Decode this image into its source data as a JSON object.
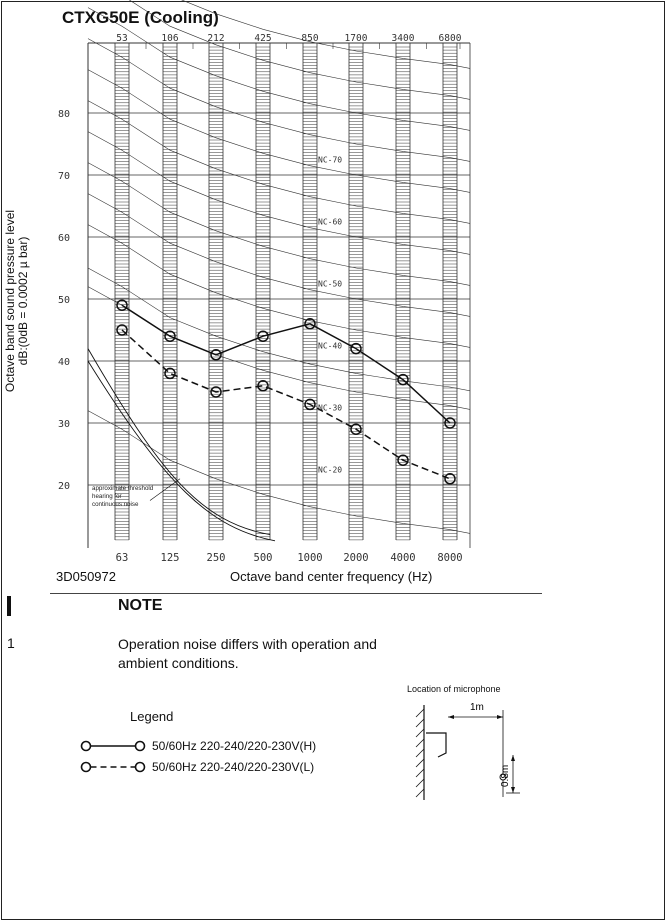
{
  "page": {
    "title": "CTXG50E (Cooling)",
    "drawing_code": "3D050972",
    "note_heading": "NOTE",
    "note_number": "1",
    "note_text": "Operation noise differs with operation and ambient conditions.",
    "mic_location_label": "Location of microphone",
    "mic_distance_label": "1m",
    "mic_height_label": "0.8m",
    "legend_title": "Legend",
    "legend": [
      {
        "label": "50/60Hz 220-240/220-230V(H)",
        "style": "solid"
      },
      {
        "label": "50/60Hz 220-240/220-230V(L)",
        "style": "dashed"
      }
    ]
  },
  "chart_data": {
    "type": "line",
    "title": "CTXG50E (Cooling)",
    "xlabel": "Octave band center frequency (Hz)",
    "ylabel": "Octave band sound pressure level dB:(0dB = 0.0002 µ bar)",
    "ylabel_lines": [
      "Octave band sound pressure level",
      "dB:(0dB = 0.0002 µ bar)"
    ],
    "x_bottom_ticks": [
      "63",
      "125",
      "250",
      "500",
      "1000",
      "2000",
      "4000",
      "8000"
    ],
    "x_top_ticks": [
      "53",
      "106",
      "212",
      "425",
      "850",
      "1700",
      "3400",
      "6800"
    ],
    "y_ticks": [
      20,
      30,
      40,
      50,
      60,
      70,
      80
    ],
    "ylim": [
      15,
      87
    ],
    "grid": true,
    "nc_curves": [
      "NC-20",
      "NC-30",
      "NC-40",
      "NC-50",
      "NC-60",
      "NC-70"
    ],
    "threshold_annotation": "approximate threshold hearing for continuous noise",
    "series": [
      {
        "name": "50/60Hz 220-240/220-230V(H)",
        "style": "solid",
        "values": [
          49,
          44,
          41,
          44,
          46,
          42,
          37,
          30
        ]
      },
      {
        "name": "50/60Hz 220-240/220-230V(L)",
        "style": "dashed",
        "values": [
          45,
          38,
          35,
          36,
          33,
          29,
          24,
          21
        ]
      }
    ],
    "colors": {
      "line": "#111111",
      "grid": "#333333"
    }
  }
}
